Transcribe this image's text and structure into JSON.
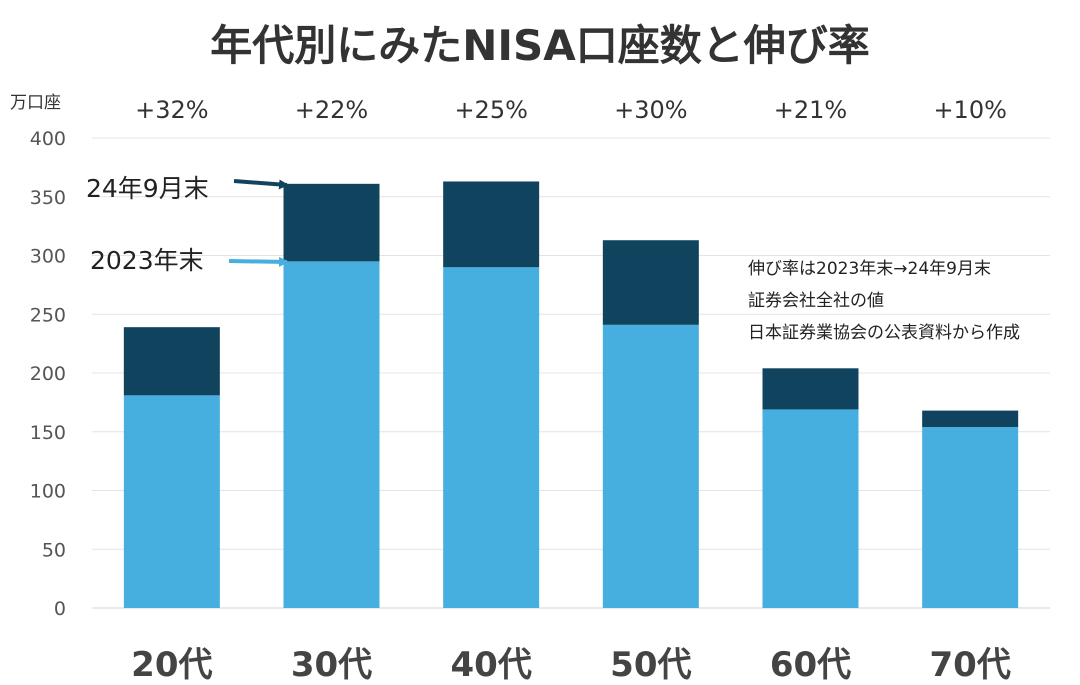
{
  "chart_data": {
    "type": "bar",
    "stacked": true,
    "title": "年代別にみたNISA口座数と伸び率",
    "y_unit": "万口座",
    "ylim": [
      0,
      400
    ],
    "yticks": [
      0,
      50,
      100,
      150,
      200,
      250,
      300,
      350,
      400
    ],
    "grid": true,
    "categories": [
      "20代",
      "30代",
      "40代",
      "50代",
      "60代",
      "70代"
    ],
    "growth_labels": [
      "+32%",
      "+22%",
      "+25%",
      "+30%",
      "+21%",
      "+10%"
    ],
    "series": [
      {
        "name": "2023年末",
        "color": "#47aee0",
        "values": [
          181,
          295,
          290,
          241,
          169,
          154
        ]
      },
      {
        "name": "24年9月末",
        "color": "#10445e",
        "totals": [
          239,
          361,
          363,
          313,
          204,
          168
        ]
      }
    ],
    "notes": [
      "伸び率は2023年末→24年9月末",
      "証券会社全社の値",
      "日本証券業協会の公表資料から作成"
    ]
  }
}
